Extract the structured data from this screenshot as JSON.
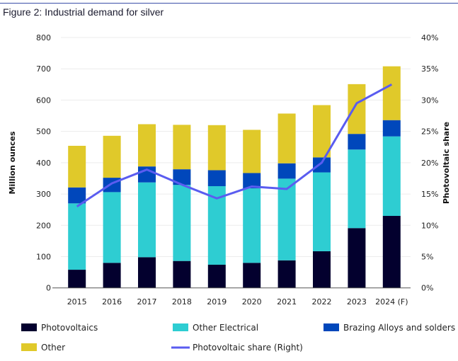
{
  "title": "Figure 2: Industrial demand for silver",
  "chart_data": {
    "type": "bar",
    "stacked": true,
    "title": "Figure 2: Industrial demand for silver",
    "categories": [
      "2015",
      "2016",
      "2017",
      "2018",
      "2019",
      "2020",
      "2021",
      "2022",
      "2023",
      "2024 (F)"
    ],
    "ylabel": "Million ounces",
    "y2label": "Photovoltaic share",
    "ylim": [
      0,
      800
    ],
    "y2lim": [
      0,
      40
    ],
    "yticks": [
      "0",
      "100",
      "200",
      "300",
      "400",
      "500",
      "600",
      "700",
      "800"
    ],
    "y2ticks": [
      "0%",
      "5%",
      "10%",
      "15%",
      "20%",
      "25%",
      "30%",
      "35%",
      "40%"
    ],
    "grid": true,
    "legend_position": "bottom",
    "series": [
      {
        "name": "Photovoltaics",
        "type": "bar",
        "color": "#03002e",
        "values": [
          58,
          80,
          98,
          86,
          74,
          80,
          88,
          117,
          191,
          230
        ]
      },
      {
        "name": "Other Electrical",
        "type": "bar",
        "color": "#2ecdd2",
        "values": [
          212,
          226,
          239,
          243,
          251,
          238,
          261,
          252,
          251,
          254
        ]
      },
      {
        "name": "Brazing Alloys and solders",
        "type": "bar",
        "color": "#0047bb",
        "values": [
          51,
          46,
          51,
          50,
          51,
          49,
          49,
          48,
          50,
          52
        ]
      },
      {
        "name": "Other",
        "type": "bar",
        "color": "#e0c92a",
        "values": [
          133,
          134,
          135,
          142,
          144,
          138,
          159,
          167,
          159,
          172
        ]
      },
      {
        "name": "Photovoltaic share (Right)",
        "type": "line",
        "axis": "right",
        "color": "#5a5cf0",
        "values": [
          13.0,
          16.7,
          18.9,
          16.5,
          14.3,
          16.2,
          15.8,
          20.0,
          29.5,
          32.5
        ]
      }
    ]
  }
}
